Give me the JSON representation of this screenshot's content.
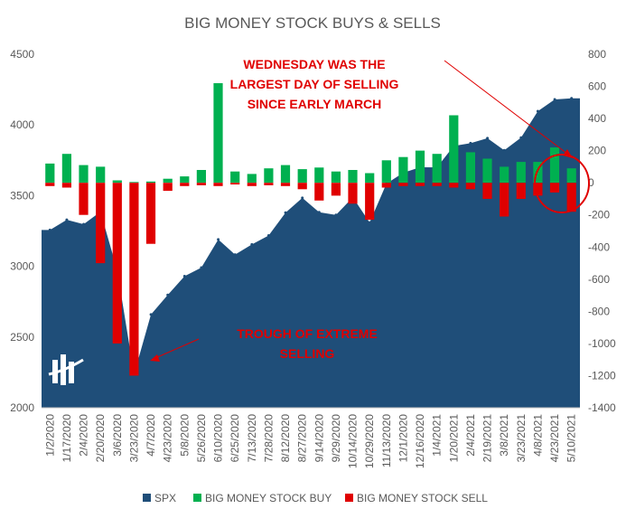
{
  "chart_data": {
    "type": "area",
    "title": "BIG MONEY STOCK BUYS & SELLS",
    "colors": {
      "spx": "#1f4e79",
      "buy": "#00b050",
      "sell": "#e00000",
      "annotation": "#e00000"
    },
    "y_left": {
      "ylim": [
        2000,
        4500
      ],
      "ticks": [
        "2000",
        "2500",
        "3000",
        "3500",
        "4000",
        "4500"
      ]
    },
    "y_right": {
      "ylim": [
        -1400,
        800
      ],
      "ticks": [
        "800",
        "600",
        "400",
        "200",
        "0",
        "-200",
        "-400",
        "-600",
        "-800",
        "-1000",
        "-1200",
        "-1400"
      ]
    },
    "x_tick_labels": [
      "1/2/2020",
      "1/17/2020",
      "2/4/2020",
      "2/20/2020",
      "3/6/2020",
      "3/23/2020",
      "4/7/2020",
      "4/23/2020",
      "5/8/2020",
      "5/26/2020",
      "6/10/2020",
      "6/25/2020",
      "7/13/2020",
      "7/28/2020",
      "8/12/2020",
      "8/27/2020",
      "9/14/2020",
      "9/29/2020",
      "10/14/2020",
      "10/29/2020",
      "11/13/2020",
      "12/1/2020",
      "12/16/2020",
      "1/4/2021",
      "1/20/2021",
      "2/4/2021",
      "2/19/2021",
      "3/8/2021",
      "3/23/2021",
      "4/8/2021",
      "4/23/2021",
      "5/10/2021"
    ],
    "series": [
      {
        "name": "SPX",
        "axis": "left",
        "type": "area",
        "x": [
          "1/2/2020",
          "1/17/2020",
          "2/4/2020",
          "2/20/2020",
          "3/6/2020",
          "3/23/2020",
          "4/7/2020",
          "4/23/2020",
          "5/8/2020",
          "5/26/2020",
          "6/10/2020",
          "6/25/2020",
          "7/13/2020",
          "7/28/2020",
          "8/12/2020",
          "8/27/2020",
          "9/14/2020",
          "9/29/2020",
          "10/14/2020",
          "10/29/2020",
          "11/13/2020",
          "12/1/2020",
          "12/16/2020",
          "1/4/2021",
          "1/20/2021",
          "2/4/2021",
          "2/19/2021",
          "3/8/2021",
          "3/23/2021",
          "4/8/2021",
          "4/23/2021",
          "5/10/2021"
        ],
        "values": [
          3257,
          3329,
          3298,
          3386,
          2972,
          2237,
          2659,
          2797,
          2930,
          2991,
          3190,
          3083,
          3155,
          3218,
          3380,
          3484,
          3383,
          3363,
          3488,
          3310,
          3585,
          3662,
          3701,
          3700,
          3851,
          3871,
          3906,
          3821,
          3910,
          4097,
          4180,
          4188
        ]
      },
      {
        "name": "BIG MONEY STOCK BUY",
        "axis": "right",
        "type": "bar",
        "x": [
          "1/2/2020",
          "1/17/2020",
          "2/4/2020",
          "2/20/2020",
          "3/6/2020",
          "3/23/2020",
          "4/7/2020",
          "4/23/2020",
          "5/8/2020",
          "5/26/2020",
          "6/10/2020",
          "6/25/2020",
          "7/13/2020",
          "7/28/2020",
          "8/12/2020",
          "8/27/2020",
          "9/14/2020",
          "9/29/2020",
          "10/14/2020",
          "10/29/2020",
          "11/13/2020",
          "12/1/2020",
          "12/16/2020",
          "1/4/2021",
          "1/20/2021",
          "2/4/2021",
          "2/19/2021",
          "3/8/2021",
          "3/23/2021",
          "4/8/2021",
          "4/23/2021",
          "5/10/2021"
        ],
        "values": [
          120,
          180,
          110,
          100,
          15,
          5,
          8,
          25,
          40,
          80,
          620,
          70,
          55,
          90,
          110,
          85,
          95,
          70,
          80,
          60,
          140,
          160,
          200,
          180,
          420,
          190,
          150,
          100,
          130,
          130,
          220,
          90
        ]
      },
      {
        "name": "BIG MONEY STOCK SELL",
        "axis": "right",
        "type": "bar",
        "x": [
          "1/2/2020",
          "1/17/2020",
          "2/4/2020",
          "2/20/2020",
          "3/6/2020",
          "3/23/2020",
          "4/7/2020",
          "4/23/2020",
          "5/8/2020",
          "5/26/2020",
          "6/10/2020",
          "6/25/2020",
          "7/13/2020",
          "7/28/2020",
          "8/12/2020",
          "8/27/2020",
          "9/14/2020",
          "9/29/2020",
          "10/14/2020",
          "10/29/2020",
          "11/13/2020",
          "12/1/2020",
          "12/16/2020",
          "1/4/2021",
          "1/20/2021",
          "2/4/2021",
          "2/19/2021",
          "3/8/2021",
          "3/23/2021",
          "4/8/2021",
          "4/23/2021",
          "5/10/2021"
        ],
        "values": [
          -20,
          -30,
          -200,
          -500,
          -1000,
          -1200,
          -380,
          -50,
          -20,
          -15,
          -20,
          -10,
          -20,
          -15,
          -20,
          -40,
          -110,
          -80,
          -130,
          -230,
          -30,
          -20,
          -20,
          -20,
          -30,
          -40,
          -100,
          -210,
          -100,
          -80,
          -60,
          -180
        ]
      }
    ],
    "annotations": [
      {
        "lines": [
          "WEDNESDAY WAS THE",
          "LARGEST DAY OF SELLING",
          "SINCE EARLY MARCH"
        ]
      },
      {
        "lines": [
          "TROUGH OF EXTREME",
          "SELLING"
        ]
      }
    ],
    "legend": {
      "position": "bottom",
      "entries": [
        "SPX",
        "BIG MONEY STOCK BUY",
        "BIG MONEY STOCK SELL"
      ]
    },
    "grid": false
  }
}
